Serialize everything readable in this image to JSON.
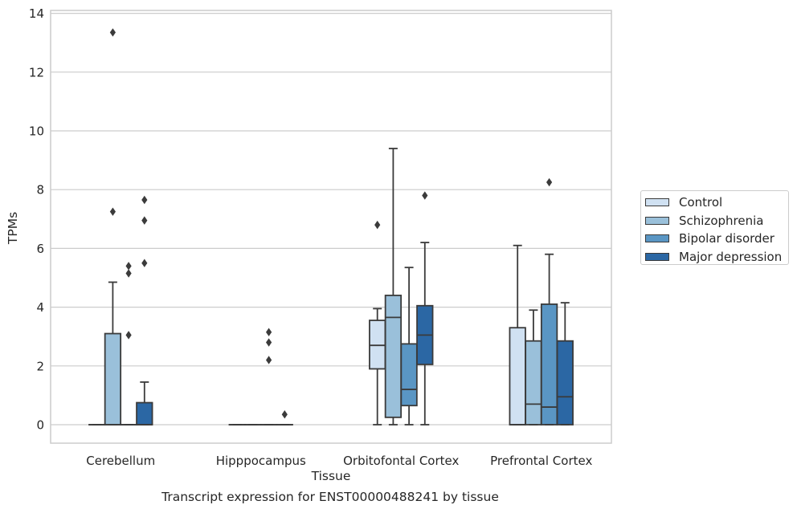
{
  "chart_data": {
    "type": "box",
    "xlabel": "Tissue",
    "ylabel": "TPMs",
    "ylim": [
      -0.65,
      14.1
    ],
    "yticks": [
      0,
      2,
      4,
      6,
      8,
      10,
      12,
      14
    ],
    "grid": "y",
    "legend_position": "right",
    "categories": [
      "Cerebellum",
      "Hipppocampus",
      "Orbitofontal Cortex",
      "Prefrontal Cortex"
    ],
    "series": [
      {
        "name": "Control",
        "color": "#d0e1f2",
        "boxes": [
          {
            "q1": 0,
            "median": 0,
            "q3": 0,
            "whislo": 0,
            "whishi": 0,
            "fliers": []
          },
          {
            "q1": 0,
            "median": 0,
            "q3": 0,
            "whislo": 0,
            "whishi": 0,
            "fliers": []
          },
          {
            "q1": 1.9,
            "median": 2.7,
            "q3": 3.55,
            "whislo": 0,
            "whishi": 3.95,
            "fliers": [
              6.8
            ]
          },
          {
            "q1": 0,
            "median": 0,
            "q3": 3.3,
            "whislo": 0,
            "whishi": 6.1,
            "fliers": []
          }
        ]
      },
      {
        "name": "Schizophrenia",
        "color": "#9ac0da",
        "boxes": [
          {
            "q1": 0,
            "median": 0,
            "q3": 3.1,
            "whislo": 0,
            "whishi": 4.85,
            "fliers": [
              7.25,
              13.35
            ]
          },
          {
            "q1": 0,
            "median": 0,
            "q3": 0,
            "whislo": 0,
            "whishi": 0,
            "fliers": []
          },
          {
            "q1": 0.25,
            "median": 3.65,
            "q3": 4.4,
            "whislo": 0,
            "whishi": 9.4,
            "fliers": []
          },
          {
            "q1": 0,
            "median": 0.7,
            "q3": 2.85,
            "whislo": 0,
            "whishi": 3.9,
            "fliers": []
          }
        ]
      },
      {
        "name": "Bipolar disorder",
        "color": "#5a96c4",
        "boxes": [
          {
            "q1": 0,
            "median": 0,
            "q3": 0,
            "whislo": 0,
            "whishi": 0,
            "fliers": [
              3.05,
              5.15,
              5.4
            ]
          },
          {
            "q1": 0,
            "median": 0,
            "q3": 0,
            "whislo": 0,
            "whishi": 0,
            "fliers": [
              2.2,
              2.8,
              3.15
            ]
          },
          {
            "q1": 0.65,
            "median": 1.2,
            "q3": 2.75,
            "whislo": 0,
            "whishi": 5.35,
            "fliers": []
          },
          {
            "q1": 0,
            "median": 0.6,
            "q3": 4.1,
            "whislo": 0,
            "whishi": 5.8,
            "fliers": [
              8.25
            ]
          }
        ]
      },
      {
        "name": "Major depression",
        "color": "#2b67a4",
        "boxes": [
          {
            "q1": 0,
            "median": 0,
            "q3": 0.75,
            "whislo": 0,
            "whishi": 1.45,
            "fliers": [
              5.5,
              6.95,
              7.65
            ]
          },
          {
            "q1": 0,
            "median": 0,
            "q3": 0,
            "whislo": 0,
            "whishi": 0,
            "fliers": [
              0.35
            ]
          },
          {
            "q1": 2.05,
            "median": 3.05,
            "q3": 4.05,
            "whislo": 0,
            "whishi": 6.2,
            "fliers": [
              7.8
            ]
          },
          {
            "q1": 0,
            "median": 0.95,
            "q3": 2.85,
            "whislo": 0,
            "whishi": 4.15,
            "fliers": []
          }
        ]
      }
    ],
    "title": "Transcript expression for ENST00000488241 by tissue"
  }
}
